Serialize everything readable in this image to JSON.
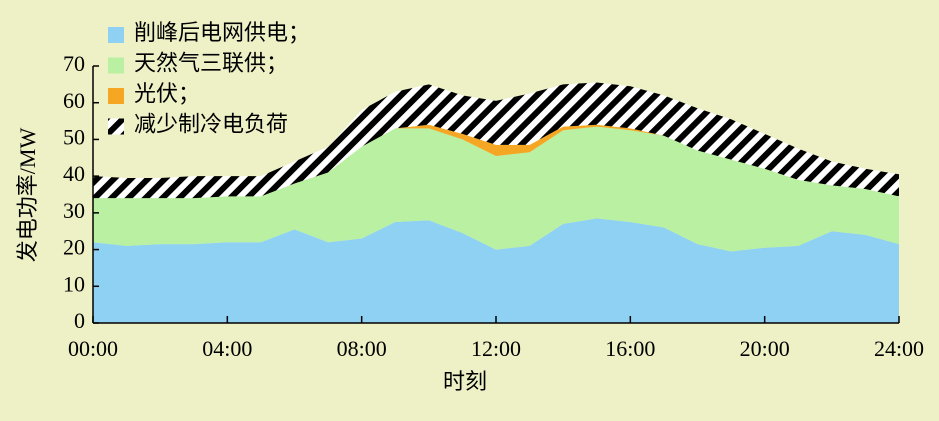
{
  "chart_data": {
    "type": "stacked_area",
    "x_label": "时刻",
    "y_label": "发电功率/MW",
    "x": [
      0,
      1,
      2,
      3,
      4,
      5,
      6,
      7,
      8,
      9,
      10,
      11,
      12,
      13,
      14,
      15,
      16,
      17,
      18,
      19,
      20,
      21,
      22,
      23,
      24
    ],
    "xlim": [
      0,
      24
    ],
    "xticks": [
      {
        "value": 0,
        "label": "00:00"
      },
      {
        "value": 4,
        "label": "04:00"
      },
      {
        "value": 8,
        "label": "08:00"
      },
      {
        "value": 12,
        "label": "12:00"
      },
      {
        "value": 16,
        "label": "16:00"
      },
      {
        "value": 20,
        "label": "20:00"
      },
      {
        "value": 24,
        "label": "24:00"
      }
    ],
    "ylim": [
      0,
      70
    ],
    "yticks": [
      0,
      10,
      20,
      30,
      40,
      50,
      60,
      70
    ],
    "series": [
      {
        "name": "削峰后电网供电；",
        "color": "#8fd1f3",
        "values": [
          22,
          21,
          21.5,
          21.5,
          22,
          22,
          25.5,
          22,
          23,
          27.5,
          28,
          24.5,
          20,
          21,
          27,
          28.5,
          27.5,
          26,
          21.5,
          19.5,
          20.5,
          21,
          25,
          24,
          21.5
        ]
      },
      {
        "name": "天然气三联供；",
        "color": "#b9f0a2",
        "values": [
          12,
          13,
          12.5,
          12.5,
          12.5,
          12.5,
          12.5,
          19,
          25,
          25.5,
          25,
          25.5,
          25.5,
          25.5,
          25.5,
          25,
          25,
          25,
          25.5,
          25,
          21.5,
          18,
          12.5,
          12.5,
          13
        ]
      },
      {
        "name": "光伏；",
        "color": "#f5a623",
        "values": [
          0,
          0,
          0,
          0,
          0,
          0,
          0,
          0,
          0,
          0,
          1,
          1.5,
          3,
          2,
          1,
          0.5,
          0.5,
          0,
          0,
          0,
          0,
          0,
          0,
          0,
          0
        ]
      },
      {
        "name": "减少制冷电负荷",
        "color": "#000000",
        "hatch": true,
        "values": [
          6,
          5.5,
          5.5,
          6,
          5.5,
          5.5,
          6,
          7,
          10,
          10,
          11,
          10.5,
          12,
          14,
          11.5,
          11.5,
          11.5,
          11,
          11.5,
          11,
          9.5,
          8.5,
          6.5,
          5.5,
          6
        ]
      }
    ]
  }
}
